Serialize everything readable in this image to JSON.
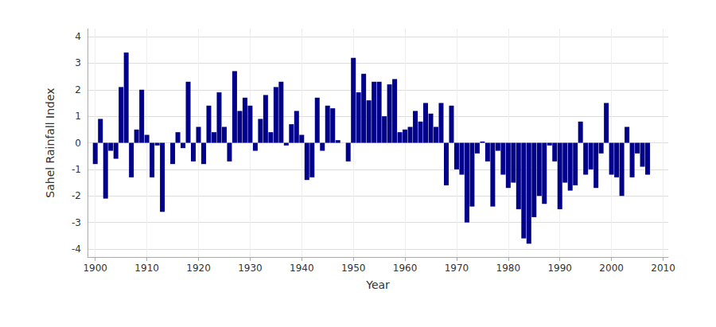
{
  "chart_data": {
    "type": "bar",
    "x_label": "Year",
    "y_label": "Sahel Rainfall Index",
    "x": [
      1900,
      1901,
      1902,
      1903,
      1904,
      1905,
      1906,
      1907,
      1908,
      1909,
      1910,
      1911,
      1912,
      1913,
      1914,
      1915,
      1916,
      1917,
      1918,
      1919,
      1920,
      1921,
      1922,
      1923,
      1924,
      1925,
      1926,
      1927,
      1928,
      1929,
      1930,
      1931,
      1932,
      1933,
      1934,
      1935,
      1936,
      1937,
      1938,
      1939,
      1940,
      1941,
      1942,
      1943,
      1944,
      1945,
      1946,
      1947,
      1948,
      1949,
      1950,
      1951,
      1952,
      1953,
      1954,
      1955,
      1956,
      1957,
      1958,
      1959,
      1960,
      1961,
      1962,
      1963,
      1964,
      1965,
      1966,
      1967,
      1968,
      1969,
      1970,
      1971,
      1972,
      1973,
      1974,
      1975,
      1976,
      1977,
      1978,
      1979,
      1980,
      1981,
      1982,
      1983,
      1984,
      1985,
      1986,
      1987,
      1988,
      1989,
      1990,
      1991,
      1992,
      1993,
      1994,
      1995,
      1996,
      1997,
      1998,
      1999,
      2000,
      2001,
      2002,
      2003,
      2004,
      2005,
      2006,
      2007
    ],
    "values": [
      -0.8,
      0.9,
      -2.1,
      -0.3,
      -0.6,
      2.1,
      3.4,
      -1.3,
      0.5,
      2.0,
      0.3,
      -1.3,
      -0.1,
      -2.6,
      0.0,
      -0.8,
      0.4,
      -0.2,
      2.3,
      -0.7,
      0.6,
      -0.8,
      1.4,
      0.4,
      1.9,
      0.6,
      -0.7,
      2.7,
      1.2,
      1.7,
      1.4,
      -0.3,
      0.9,
      1.8,
      0.4,
      2.1,
      2.3,
      -0.1,
      0.7,
      1.2,
      0.3,
      -1.4,
      -1.3,
      1.7,
      -0.3,
      1.4,
      1.3,
      0.1,
      0.0,
      -0.7,
      3.2,
      1.9,
      2.6,
      1.6,
      2.3,
      2.3,
      1.0,
      2.2,
      2.4,
      0.4,
      0.5,
      0.6,
      1.2,
      0.8,
      1.5,
      1.1,
      0.6,
      1.5,
      -1.6,
      1.4,
      -1.0,
      -1.2,
      -3.0,
      -2.4,
      -0.4,
      0.05,
      -0.7,
      -2.4,
      -0.3,
      -1.2,
      -1.7,
      -1.5,
      -2.5,
      -3.6,
      -3.8,
      -2.8,
      -2.0,
      -2.3,
      -0.1,
      -0.7,
      -2.5,
      -1.5,
      -1.8,
      -1.6,
      0.8,
      -1.2,
      -1.0,
      -1.7,
      -0.4,
      1.5,
      -1.2,
      -1.3,
      -2.0,
      0.6,
      -1.3,
      -0.4,
      -0.9,
      -1.2
    ],
    "color": "#00008b",
    "xlim": [
      1898.5,
      2011
    ],
    "xticks": [
      1900,
      1910,
      1920,
      1930,
      1940,
      1950,
      1960,
      1970,
      1980,
      1990,
      2000,
      2010
    ],
    "ylim": [
      -4.3,
      4.3
    ],
    "yticks": [
      -4,
      -3,
      -2,
      -1,
      0,
      1,
      2,
      3,
      4
    ],
    "grid": true
  }
}
